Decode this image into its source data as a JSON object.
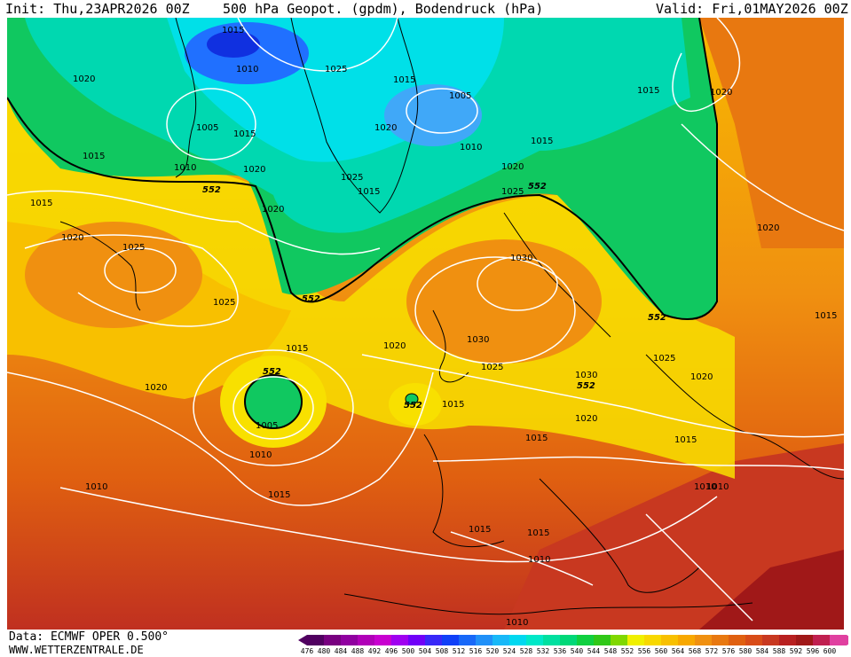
{
  "header": {
    "init": "Init: Thu,23APR2026 00Z",
    "title": "500 hPa Geopot. (gpdm), Bodendruck (hPa)",
    "valid": "Valid: Fri,01MAY2026 00Z"
  },
  "footer": {
    "data_source": "Data: ECMWF OPER 0.500°",
    "website": "WWW.WETTERZENTRALE.DE"
  },
  "colors": {
    "green_low": "#10c860",
    "teal": "#00d8b0",
    "cyan": "#00e8f0",
    "blue": "#2070ff",
    "deep_blue": "#1030e0",
    "yellow": "#f8e000",
    "light_orange": "#f8b800",
    "orange": "#f09010",
    "dark_orange": "#e06010",
    "red": "#d03020",
    "dark_red": "#a01818",
    "isobar": "#ffffff",
    "coast": "#000000"
  },
  "legend": {
    "ticks": [
      "476",
      "480",
      "484",
      "488",
      "492",
      "496",
      "500",
      "504",
      "508",
      "512",
      "516",
      "520",
      "524",
      "528",
      "532",
      "536",
      "540",
      "544",
      "548",
      "552",
      "556",
      "560",
      "564",
      "568",
      "572",
      "576",
      "580",
      "584",
      "588",
      "592",
      "596",
      "600"
    ],
    "colors": [
      "#500060",
      "#780080",
      "#9000a0",
      "#b000b8",
      "#c800d0",
      "#a000f0",
      "#7000f8",
      "#3828f8",
      "#1040f8",
      "#1868f8",
      "#2090f8",
      "#18b8f8",
      "#00d8f0",
      "#00e8c8",
      "#00e0a0",
      "#00d878",
      "#10d040",
      "#30c818",
      "#80d800",
      "#f0f000",
      "#f8d800",
      "#f8c000",
      "#f8a800",
      "#f09010",
      "#e87810",
      "#e06010",
      "#d84c18",
      "#c83820",
      "#b82020",
      "#a01818",
      "#c02050",
      "#e040a0"
    ]
  },
  "geopotential_labels": [
    "552",
    "552",
    "552",
    "552",
    "552",
    "552",
    "552"
  ],
  "pressure_labels": {
    "north": [
      "1015",
      "1010",
      "1020",
      "1025",
      "1015",
      "1005",
      "1005",
      "1015",
      "1020",
      "1010",
      "1015",
      "1015",
      "1020",
      "1015",
      "1010",
      "1020",
      "1025",
      "1015",
      "1020",
      "1020",
      "1025"
    ],
    "middle": [
      "1015",
      "1020",
      "1025",
      "1025",
      "1030",
      "1030",
      "1025",
      "1020",
      "1015",
      "1020",
      "1015",
      "1005",
      "1010",
      "1020",
      "1030",
      "1025",
      "1020",
      "1015",
      "1015",
      "1020"
    ],
    "south": [
      "1010",
      "1015",
      "1010",
      "1015",
      "1015",
      "1010",
      "1010",
      "1015",
      "1010"
    ]
  }
}
